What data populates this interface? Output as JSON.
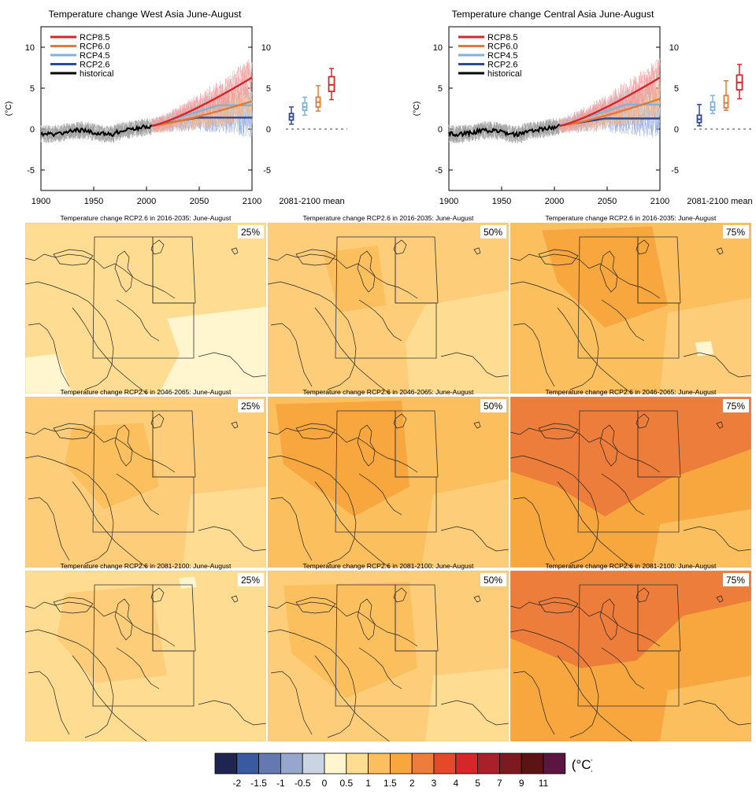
{
  "timeseries": [
    {
      "title": "Temperature change West Asia June-August",
      "ylabel": "(°C)",
      "ylim": [
        -7.5,
        12.5
      ],
      "xlim": [
        1900,
        2100
      ],
      "xticks": [
        1900,
        1950,
        2000,
        2050,
        2100
      ],
      "yticks": [
        -5,
        0,
        5,
        10
      ],
      "ytick_labels": [
        "-5",
        "0",
        "5",
        "10"
      ],
      "xtick_labels": [
        "1900",
        "1950",
        "2000",
        "2050",
        "2100"
      ],
      "box_label": "2081-2100 mean",
      "legend": [
        {
          "name": "RCP8.5",
          "color": "#d7262a"
        },
        {
          "name": "RCP6.0",
          "color": "#e07b35"
        },
        {
          "name": "RCP4.5",
          "color": "#7fb3da"
        },
        {
          "name": "RCP2.6",
          "color": "#2f4a93"
        },
        {
          "name": "historical",
          "color": "#000000"
        }
      ],
      "series_end": {
        "RCP8.5": 6.3,
        "RCP6.0": 3.4,
        "RCP4.5": 2.9,
        "RCP2.6": 1.4
      },
      "boxes": [
        {
          "name": "RCP2.6",
          "color": "#2f4a93",
          "min": 0.6,
          "q1": 1.1,
          "median": 1.5,
          "q3": 1.9,
          "max": 2.7
        },
        {
          "name": "RCP4.5",
          "color": "#7fb3da",
          "min": 1.7,
          "q1": 2.3,
          "median": 2.7,
          "q3": 3.2,
          "max": 3.9
        },
        {
          "name": "RCP6.0",
          "color": "#e07b35",
          "min": 2.2,
          "q1": 2.7,
          "median": 3.3,
          "q3": 3.9,
          "max": 5.3
        },
        {
          "name": "RCP8.5",
          "color": "#d7262a",
          "min": 3.6,
          "q1": 4.6,
          "median": 5.4,
          "q3": 6.4,
          "max": 7.4
        }
      ]
    },
    {
      "title": "Temperature change Central Asia June-August",
      "ylabel": "(°C)",
      "ylim": [
        -7.5,
        12.5
      ],
      "xlim": [
        1900,
        2100
      ],
      "xticks": [
        1900,
        1950,
        2000,
        2050,
        2100
      ],
      "yticks": [
        -5,
        0,
        5,
        10
      ],
      "ytick_labels": [
        "-5",
        "0",
        "5",
        "10"
      ],
      "xtick_labels": [
        "1900",
        "1950",
        "2000",
        "2050",
        "2100"
      ],
      "box_label": "2081-2100 mean",
      "legend": [
        {
          "name": "RCP8.5",
          "color": "#d7262a"
        },
        {
          "name": "RCP6.0",
          "color": "#e07b35"
        },
        {
          "name": "RCP4.5",
          "color": "#7fb3da"
        },
        {
          "name": "RCP2.6",
          "color": "#2f4a93"
        },
        {
          "name": "historical",
          "color": "#000000"
        }
      ],
      "series_end": {
        "RCP8.5": 6.3,
        "RCP6.0": 3.7,
        "RCP4.5": 3.0,
        "RCP2.6": 1.3
      },
      "boxes": [
        {
          "name": "RCP2.6",
          "color": "#2f4a93",
          "min": 0.4,
          "q1": 0.8,
          "median": 1.2,
          "q3": 1.7,
          "max": 3.0
        },
        {
          "name": "RCP4.5",
          "color": "#7fb3da",
          "min": 1.9,
          "q1": 2.3,
          "median": 2.7,
          "q3": 3.3,
          "max": 4.1
        },
        {
          "name": "RCP6.0",
          "color": "#e07b35",
          "min": 2.3,
          "q1": 2.6,
          "median": 3.2,
          "q3": 4.1,
          "max": 5.9
        },
        {
          "name": "RCP8.5",
          "color": "#d7262a",
          "min": 3.7,
          "q1": 4.8,
          "median": 5.7,
          "q3": 6.6,
          "max": 7.9
        }
      ]
    }
  ],
  "maps": [
    {
      "title": "Temperature change RCP2.6 in 2016-2035: June-August",
      "pct": "25%",
      "base": "#fedc92",
      "patches": [
        {
          "c": "#fff6cf",
          "pts": [
            [
              180,
              128
            ],
            [
              306,
              112
            ],
            [
              306,
              228
            ],
            [
              170,
              228
            ],
            [
              196,
              175
            ]
          ]
        },
        {
          "c": "#fff6cf",
          "pts": [
            [
              0,
              180
            ],
            [
              40,
              175
            ],
            [
              60,
              228
            ],
            [
              0,
              228
            ]
          ]
        }
      ]
    },
    {
      "title": "Temperature change RCP2.6 in 2016-2035: June-August",
      "pct": "50%",
      "base": "#fdcd7a",
      "patches": [
        {
          "c": "#fedc92",
          "pts": [
            [
              200,
              110
            ],
            [
              306,
              90
            ],
            [
              306,
              228
            ],
            [
              180,
              228
            ],
            [
              175,
              160
            ]
          ]
        },
        {
          "c": "#fbbf5e",
          "pts": [
            [
              70,
              40
            ],
            [
              140,
              30
            ],
            [
              150,
              110
            ],
            [
              90,
              120
            ]
          ]
        }
      ]
    },
    {
      "title": "Temperature change RCP2.6 in 2016-2035: June-August",
      "pct": "75%",
      "base": "#fbbf5e",
      "patches": [
        {
          "c": "#f7a73d",
          "pts": [
            [
              40,
              10
            ],
            [
              180,
              5
            ],
            [
              200,
              110
            ],
            [
              120,
              140
            ],
            [
              60,
              80
            ]
          ]
        },
        {
          "c": "#fdcd7a",
          "pts": [
            [
              200,
              120
            ],
            [
              306,
              100
            ],
            [
              306,
              228
            ],
            [
              190,
              228
            ]
          ]
        },
        {
          "c": "#fff6cf",
          "pts": [
            [
              235,
              160
            ],
            [
              255,
              158
            ],
            [
              258,
              175
            ],
            [
              238,
              178
            ]
          ]
        }
      ]
    },
    {
      "title": "Temperature change RCP2.6 in 2046-2065: June-August",
      "pct": "25%",
      "base": "#fdcd7a",
      "patches": [
        {
          "c": "#fbbf5e",
          "pts": [
            [
              60,
              40
            ],
            [
              150,
              35
            ],
            [
              170,
              120
            ],
            [
              100,
              150
            ],
            [
              50,
              90
            ]
          ]
        },
        {
          "c": "#fedc92",
          "pts": [
            [
              210,
              130
            ],
            [
              306,
              120
            ],
            [
              306,
              228
            ],
            [
              200,
              228
            ]
          ]
        }
      ]
    },
    {
      "title": "Temperature change RCP2.6 in 2046-2065: June-August",
      "pct": "50%",
      "base": "#fbbf5e",
      "patches": [
        {
          "c": "#f7a73d",
          "pts": [
            [
              10,
              10
            ],
            [
              170,
              5
            ],
            [
              180,
              120
            ],
            [
              110,
              160
            ],
            [
              20,
              90
            ]
          ]
        },
        {
          "c": "#fdcd7a",
          "pts": [
            [
              210,
              130
            ],
            [
              306,
              110
            ],
            [
              306,
              228
            ],
            [
              195,
              228
            ]
          ]
        }
      ]
    },
    {
      "title": "Temperature change RCP2.6 in 2046-2065: June-August",
      "pct": "75%",
      "base": "#f7a73d",
      "patches": [
        {
          "c": "#ec7d3a",
          "pts": [
            [
              0,
              0
            ],
            [
              306,
              0
            ],
            [
              306,
              70
            ],
            [
              200,
              110
            ],
            [
              120,
              160
            ],
            [
              60,
              120
            ],
            [
              0,
              100
            ]
          ]
        },
        {
          "c": "#fbbf5e",
          "pts": [
            [
              190,
              170
            ],
            [
              306,
              150
            ],
            [
              306,
              228
            ],
            [
              180,
              228
            ]
          ]
        }
      ]
    },
    {
      "title": "Temperature change RCP2.6 in 2081-2100: June-August",
      "pct": "25%",
      "base": "#fedc92",
      "patches": [
        {
          "c": "#fdcd7a",
          "pts": [
            [
              50,
              30
            ],
            [
              160,
              20
            ],
            [
              180,
              140
            ],
            [
              90,
              150
            ],
            [
              40,
              90
            ]
          ]
        },
        {
          "c": "#fff6cf",
          "pts": [
            [
              195,
              10
            ],
            [
              215,
              8
            ],
            [
              218,
              22
            ],
            [
              198,
              24
            ]
          ]
        }
      ]
    },
    {
      "title": "Temperature change RCP2.6 in 2081-2100: June-August",
      "pct": "50%",
      "base": "#fdcd7a",
      "patches": [
        {
          "c": "#fbbf5e",
          "pts": [
            [
              20,
              20
            ],
            [
              180,
              15
            ],
            [
              190,
              130
            ],
            [
              100,
              170
            ],
            [
              30,
              110
            ]
          ]
        },
        {
          "c": "#fedc92",
          "pts": [
            [
              210,
              140
            ],
            [
              306,
              130
            ],
            [
              306,
              228
            ],
            [
              200,
              228
            ]
          ]
        }
      ]
    },
    {
      "title": "Temperature change RCP2.6 in 2081-2100: June-August",
      "pct": "75%",
      "base": "#f7a73d",
      "patches": [
        {
          "c": "#ec7d3a",
          "pts": [
            [
              0,
              0
            ],
            [
              306,
              0
            ],
            [
              306,
              40
            ],
            [
              220,
              60
            ],
            [
              160,
              120
            ],
            [
              90,
              130
            ],
            [
              0,
              90
            ]
          ]
        },
        {
          "c": "#fbbf5e",
          "pts": [
            [
              200,
              160
            ],
            [
              306,
              140
            ],
            [
              306,
              228
            ],
            [
              190,
              228
            ]
          ]
        }
      ]
    }
  ],
  "colorbar": {
    "unit": "(°C)",
    "colors": [
      "#1d2550",
      "#3a5a9f",
      "#6479b1",
      "#95a7cc",
      "#cbd4e3",
      "#fff6cf",
      "#fedc92",
      "#fbbf5e",
      "#f7a73d",
      "#ec7d3a",
      "#e4492b",
      "#d7262a",
      "#a9202a",
      "#7c1a20",
      "#5b1313",
      "#5a1540"
    ],
    "labels": [
      "-2",
      "-1.5",
      "-1",
      "-0.5",
      "0",
      "0.5",
      "1",
      "1.5",
      "2",
      "3",
      "4",
      "5",
      "7",
      "9",
      "11"
    ]
  }
}
